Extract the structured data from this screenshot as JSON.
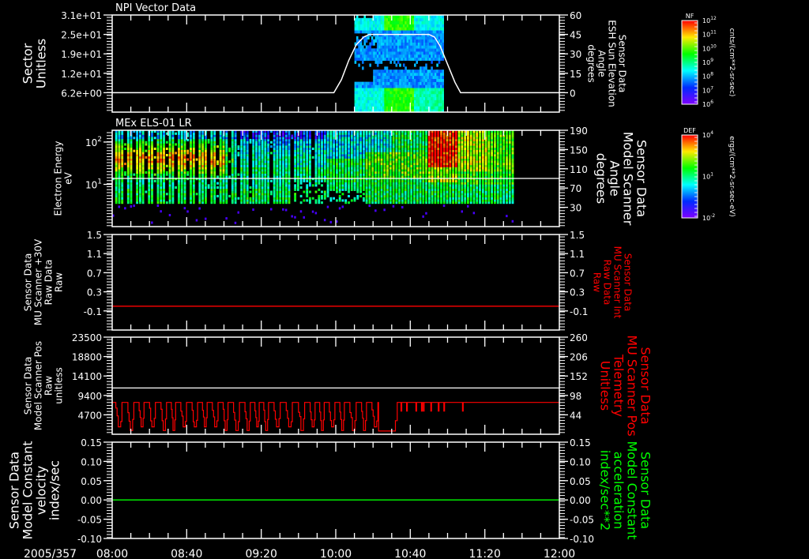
{
  "date_label": "2005/357",
  "colors": {
    "frame": "#ffffff",
    "red": "#ff0000",
    "green": "#00ff00",
    "background": "#000000"
  },
  "chart_data": {
    "type": "multi-panel time series + spectrogram",
    "x_axis": {
      "range": [
        "08:00",
        "12:00"
      ],
      "ticks": [
        "08:00",
        "08:40",
        "09:20",
        "10:00",
        "10:40",
        "11:20",
        "12:00"
      ],
      "minor_step_min": 10
    },
    "panels": [
      {
        "title": "NPI Vector Data",
        "type": "heatmap+line",
        "left_axis": {
          "label": [
            "Sector",
            "Unitless"
          ],
          "label_color": "#ffffff",
          "big": true,
          "scale": "linear",
          "range": [
            0,
            31
          ],
          "ticks": [
            {
              "v": 31,
              "label": "3.1e+01"
            },
            {
              "v": 24.8,
              "label": "2.5e+01"
            },
            {
              "v": 18.6,
              "label": "1.9e+01"
            },
            {
              "v": 12.4,
              "label": "1.2e+01"
            },
            {
              "v": 6.2,
              "label": "6.2e+00"
            }
          ]
        },
        "right_axis": {
          "label": [
            "Sensor Data",
            "ESH Sun Elevation",
            "Angle",
            "degrees"
          ],
          "label_color": "#ffffff",
          "scale": "linear",
          "range": [
            -15,
            60
          ],
          "ticks": [
            {
              "v": 60,
              "label": "60"
            },
            {
              "v": 45,
              "label": "45"
            },
            {
              "v": 30,
              "label": "30"
            },
            {
              "v": 15,
              "label": "15"
            },
            {
              "v": 0,
              "label": "0"
            }
          ]
        },
        "heatmap": {
          "time_range_min": [
            130,
            178
          ],
          "colorbar": "NF"
        },
        "line": {
          "axis": "right",
          "color": "#ffffff",
          "points_min_value": [
            [
              0,
              0
            ],
            [
              119,
              0
            ],
            [
              123,
              10
            ],
            [
              127,
              25
            ],
            [
              131,
              37
            ],
            [
              135,
              43
            ],
            [
              138,
              45
            ],
            [
              170,
              45
            ],
            [
              173,
              43
            ],
            [
              176,
              36
            ],
            [
              180,
              22
            ],
            [
              184,
              8
            ],
            [
              187,
              0
            ],
            [
              240,
              0
            ]
          ]
        }
      },
      {
        "title": "MEx ELS-01 LR",
        "type": "heatmap+line",
        "left_axis": {
          "label": [
            "Electron Energy",
            "eV"
          ],
          "label_color": "#ffffff",
          "scale": "log",
          "range": [
            1,
            190
          ],
          "ticks": [
            {
              "v": 100,
              "label": "10",
              "exp": "2"
            },
            {
              "v": 10,
              "label": "10",
              "exp": "1"
            }
          ]
        },
        "right_axis": {
          "label": [
            "Sensor Data",
            "Model Scanner",
            "Angle",
            "degrees"
          ],
          "label_color": "#ffffff",
          "big": true,
          "scale": "linear",
          "range": [
            -10,
            190
          ],
          "ticks": [
            {
              "v": 190,
              "label": "190"
            },
            {
              "v": 150,
              "label": "150"
            },
            {
              "v": 110,
              "label": "110"
            },
            {
              "v": 70,
              "label": "70"
            },
            {
              "v": 30,
              "label": "30"
            }
          ]
        },
        "heatmap": {
          "time_range_min": [
            0,
            214.5
          ],
          "energy_range_eV": [
            3.5,
            190
          ],
          "colorbar": "DEF"
        },
        "hline": {
          "axis": "right",
          "value": 90,
          "color": "#ffffff"
        }
      },
      {
        "title": "",
        "type": "line",
        "left_axis": {
          "label": [
            "Sensor Data",
            "MU Scanner +30V",
            "Raw Data",
            "Raw"
          ],
          "label_color": "#ffffff",
          "scale": "linear",
          "range": [
            -0.5,
            1.5
          ],
          "ticks": [
            {
              "v": 1.5,
              "label": "1.5"
            },
            {
              "v": 1.1,
              "label": "1.1"
            },
            {
              "v": 0.7,
              "label": "0.7"
            },
            {
              "v": 0.3,
              "label": "0.3"
            },
            {
              "v": -0.1,
              "label": "-0.1"
            }
          ]
        },
        "right_axis": {
          "label": [
            "Sensor Data",
            "MU Scanner Int",
            "Raw Data",
            "Raw"
          ],
          "label_color": "#ff0000",
          "scale": "linear",
          "range": [
            -0.5,
            1.5
          ],
          "ticks": [
            {
              "v": 1.5,
              "label": "1.5"
            },
            {
              "v": 1.1,
              "label": "1.1"
            },
            {
              "v": 0.7,
              "label": "0.7"
            },
            {
              "v": 0.3,
              "label": "0.3"
            },
            {
              "v": -0.1,
              "label": "-0.1"
            }
          ]
        },
        "hline": {
          "axis": "left",
          "value": 0.0,
          "color": "#ff0000"
        }
      },
      {
        "title": "",
        "type": "line",
        "left_axis": {
          "label": [
            "Sensor Data",
            "Model Scanner Pos",
            "Raw",
            "unitless"
          ],
          "label_color": "#ffffff",
          "scale": "linear",
          "range": [
            0,
            23500
          ],
          "ticks": [
            {
              "v": 23500,
              "label": "23500"
            },
            {
              "v": 18800,
              "label": "18800"
            },
            {
              "v": 14100,
              "label": "14100"
            },
            {
              "v": 9400,
              "label": "9400"
            },
            {
              "v": 4700,
              "label": "4700"
            }
          ]
        },
        "right_axis": {
          "label": [
            "Sensor Data",
            "MU Scanner Pos",
            "Telemetry",
            "Unitless"
          ],
          "label_color": "#ff0000",
          "big": true,
          "scale": "linear",
          "range": [
            -10,
            260
          ],
          "ticks": [
            {
              "v": 260,
              "label": "260"
            },
            {
              "v": 206,
              "label": "206"
            },
            {
              "v": 152,
              "label": "152"
            },
            {
              "v": 98,
              "label": "98"
            },
            {
              "v": 44,
              "label": "44"
            }
          ]
        },
        "hline": {
          "axis": "left",
          "value": 11200,
          "color": "#ffffff"
        },
        "scan_line": {
          "axis": "left",
          "color": "#ff0000",
          "high": 7700,
          "low": 900,
          "oscillation": {
            "start_min": 0,
            "end_min": 142,
            "period_min": 5.6
          },
          "plateau": {
            "start_min": 143,
            "end_min": 152,
            "value": 780
          },
          "steady": {
            "start_min": 153,
            "end_min": 240,
            "value": 7700,
            "dips_min": [
              155,
              158,
              163,
              166,
              167,
              171,
              175,
              178,
              188
            ],
            "dip_value": 5600
          }
        }
      },
      {
        "title": "",
        "type": "line",
        "left_axis": {
          "label": [
            "Sensor Data",
            "Model Constant",
            "velocity",
            "index/sec"
          ],
          "label_color": "#ffffff",
          "big": true,
          "scale": "linear",
          "range": [
            -0.1,
            0.15
          ],
          "ticks": [
            {
              "v": 0.15,
              "label": "0.15"
            },
            {
              "v": 0.1,
              "label": "0.10"
            },
            {
              "v": 0.05,
              "label": "0.05"
            },
            {
              "v": 0.0,
              "label": "0.00"
            },
            {
              "v": -0.05,
              "label": "-0.05"
            },
            {
              "v": -0.1,
              "label": "-0.10"
            }
          ]
        },
        "right_axis": {
          "label": [
            "Sensor Data",
            "Model Constant",
            "acceleration",
            "index/sec**2"
          ],
          "label_color": "#00ff00",
          "big": true,
          "scale": "linear",
          "range": [
            -0.1,
            0.15
          ],
          "ticks": [
            {
              "v": 0.15,
              "label": "0.15"
            },
            {
              "v": 0.1,
              "label": "0.10"
            },
            {
              "v": 0.05,
              "label": "0.05"
            },
            {
              "v": 0.0,
              "label": "0.00"
            },
            {
              "v": -0.05,
              "label": "-0.05"
            },
            {
              "v": -0.1,
              "label": "-0.10"
            }
          ]
        },
        "hline": {
          "axis": "left",
          "value": 0.0,
          "color": "#00ff00"
        }
      }
    ]
  },
  "colorbars": [
    {
      "name": "NF",
      "unit": "cnts/(cm**2-sr-sec)",
      "labels": [
        {
          "b": "10",
          "e": "12"
        },
        {
          "b": "10",
          "e": "11"
        },
        {
          "b": "10",
          "e": "10"
        },
        {
          "b": "10",
          "e": "9"
        },
        {
          "b": "10",
          "e": "8"
        },
        {
          "b": "10",
          "e": "7"
        },
        {
          "b": "10",
          "e": "6"
        }
      ]
    },
    {
      "name": "DEF",
      "unit": "ergs/(cm**2-sr-sec-eV)",
      "labels": [
        {
          "b": "10",
          "e": "4"
        },
        {
          "b": "10",
          "e": "1"
        },
        {
          "b": "10",
          "e": "-2"
        }
      ]
    }
  ]
}
